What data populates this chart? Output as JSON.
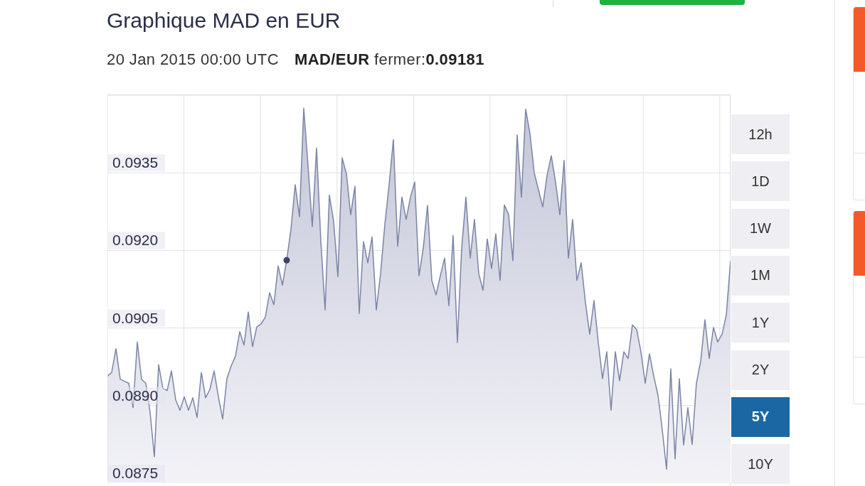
{
  "chart_data": {
    "type": "area",
    "title": "Graphique MAD en EUR",
    "subtitle": "20 Jan 2015 00:00 UTC",
    "annotations": [
      "MAD/EUR fermer:0.09181",
      "12h",
      "1D",
      "1W",
      "1M",
      "1Y",
      "2Y",
      "5Y",
      "10Y"
    ],
    "categories": [
      null,
      null,
      null,
      null,
      null,
      null,
      null,
      null,
      null,
      null,
      null,
      null,
      null,
      null,
      null,
      null,
      null,
      null,
      null,
      null,
      null,
      null,
      null,
      null,
      null,
      null,
      null,
      null,
      null,
      null,
      null,
      null,
      null,
      null,
      null,
      null,
      null,
      null,
      null,
      null,
      null,
      null,
      null,
      null,
      null,
      null,
      null,
      null,
      null,
      null,
      null,
      null,
      null,
      null,
      null,
      null,
      null,
      null,
      null,
      null,
      null,
      null,
      null,
      null,
      null,
      null,
      null,
      null,
      null,
      null,
      null,
      null,
      null,
      null,
      null,
      null,
      null,
      null,
      null,
      null,
      null,
      null,
      null,
      null,
      null,
      null,
      null,
      null,
      null,
      null,
      null,
      null,
      null,
      null,
      null,
      null,
      null,
      null,
      null,
      null,
      null,
      null,
      null,
      null,
      null,
      null,
      null,
      null,
      null,
      null,
      null,
      null,
      null,
      null,
      null,
      null,
      null,
      null,
      null,
      null,
      null,
      null,
      null,
      null,
      null,
      null,
      null,
      null,
      null,
      null,
      null,
      null,
      null,
      null,
      null,
      null,
      null,
      null,
      null,
      null,
      null,
      null,
      null,
      null,
      null,
      null,
      null
    ],
    "series": [
      {
        "color": "#7a84a6",
        "values": [
          0.08957,
          0.08964,
          0.0901,
          0.08951,
          0.08947,
          0.08943,
          0.08896,
          0.09023,
          0.08951,
          0.08943,
          0.08887,
          0.08801,
          0.08979,
          0.08933,
          0.08929,
          0.08967,
          0.08911,
          0.08891,
          0.08917,
          0.08891,
          0.08915,
          0.08877,
          0.08964,
          0.08915,
          0.08931,
          0.08967,
          0.08917,
          0.08874,
          0.08952,
          0.08977,
          0.08995,
          0.09043,
          0.09017,
          0.09081,
          0.09014,
          0.09052,
          0.09058,
          0.09071,
          0.09118,
          0.09095,
          0.0917,
          0.09133,
          0.09181,
          0.09241,
          0.09327,
          0.09265,
          0.09475,
          0.09364,
          0.09246,
          0.09398,
          0.09218,
          0.09085,
          0.09307,
          0.09256,
          0.09149,
          0.09379,
          0.09348,
          0.09269,
          0.09324,
          0.09078,
          0.09217,
          0.09176,
          0.09226,
          0.09085,
          0.09155,
          0.0925,
          0.09327,
          0.09414,
          0.09208,
          0.09303,
          0.0926,
          0.09303,
          0.09332,
          0.09151,
          0.09204,
          0.09287,
          0.09142,
          0.09114,
          0.09151,
          0.09185,
          0.09093,
          0.09229,
          0.09022,
          0.09204,
          0.09303,
          0.09185,
          0.0926,
          0.09155,
          0.09123,
          0.09222,
          0.09165,
          0.09232,
          0.09142,
          0.09288,
          0.09269,
          0.0918,
          0.09423,
          0.09303,
          0.09473,
          0.09426,
          0.0935,
          0.09317,
          0.09284,
          0.09345,
          0.09383,
          0.09332,
          0.09269,
          0.09374,
          0.09185,
          0.0926,
          0.09142,
          0.09176,
          0.09099,
          0.09038,
          0.09103,
          0.09023,
          0.08952,
          0.09004,
          0.08891,
          0.09004,
          0.08948,
          0.09004,
          0.08991,
          0.09056,
          0.09047,
          0.09004,
          0.08943,
          0.09,
          0.08957,
          0.0892,
          0.08853,
          0.08777,
          0.08971,
          0.08797,
          0.08952,
          0.08824,
          0.08896,
          0.08825,
          0.08943,
          0.08986,
          0.09066,
          0.08991,
          0.09051,
          0.09023,
          0.09038,
          0.09075,
          0.0918
        ]
      },
      {
        "type": "scatter",
        "color": "#3d4466",
        "marker": "circle",
        "values": [
          null,
          null,
          null,
          null,
          null,
          null,
          null,
          null,
          null,
          null,
          null,
          null,
          null,
          null,
          null,
          null,
          null,
          null,
          null,
          null,
          null,
          null,
          null,
          null,
          null,
          null,
          null,
          null,
          null,
          null,
          null,
          null,
          null,
          null,
          null,
          null,
          null,
          null,
          null,
          null,
          null,
          null,
          0.09181,
          null,
          null,
          null,
          null,
          null,
          null,
          null,
          null,
          null,
          null,
          null,
          null,
          null,
          null,
          null,
          null,
          null,
          null,
          null,
          null,
          null,
          null,
          null,
          null,
          null,
          null,
          null,
          null,
          null,
          null,
          null,
          null,
          null,
          null,
          null,
          null,
          null,
          null,
          null,
          null,
          null,
          null,
          null,
          null,
          null,
          null,
          null,
          null,
          null,
          null,
          null,
          null,
          null,
          null,
          null,
          null,
          null,
          null,
          null,
          null,
          null,
          null,
          null,
          null,
          null,
          null,
          null,
          null,
          null,
          null,
          null,
          null,
          null,
          null,
          null,
          null,
          null,
          null,
          null,
          null,
          null,
          null,
          null,
          null,
          null,
          null,
          null,
          null,
          null,
          null,
          null,
          null,
          null,
          null,
          null,
          null,
          null,
          null,
          null,
          null,
          null,
          null,
          null,
          null
        ]
      }
    ],
    "ylim": [
      0.0875,
      0.095
    ],
    "yticks": [
      0.0875,
      {
        "value": 0.089,
        "label": "0.0890"
      },
      0.0905,
      {
        "value": 0.092,
        "label": "0.0920"
      },
      0.0935
    ],
    "grid": true,
    "tick_labels": "y"
  }
}
